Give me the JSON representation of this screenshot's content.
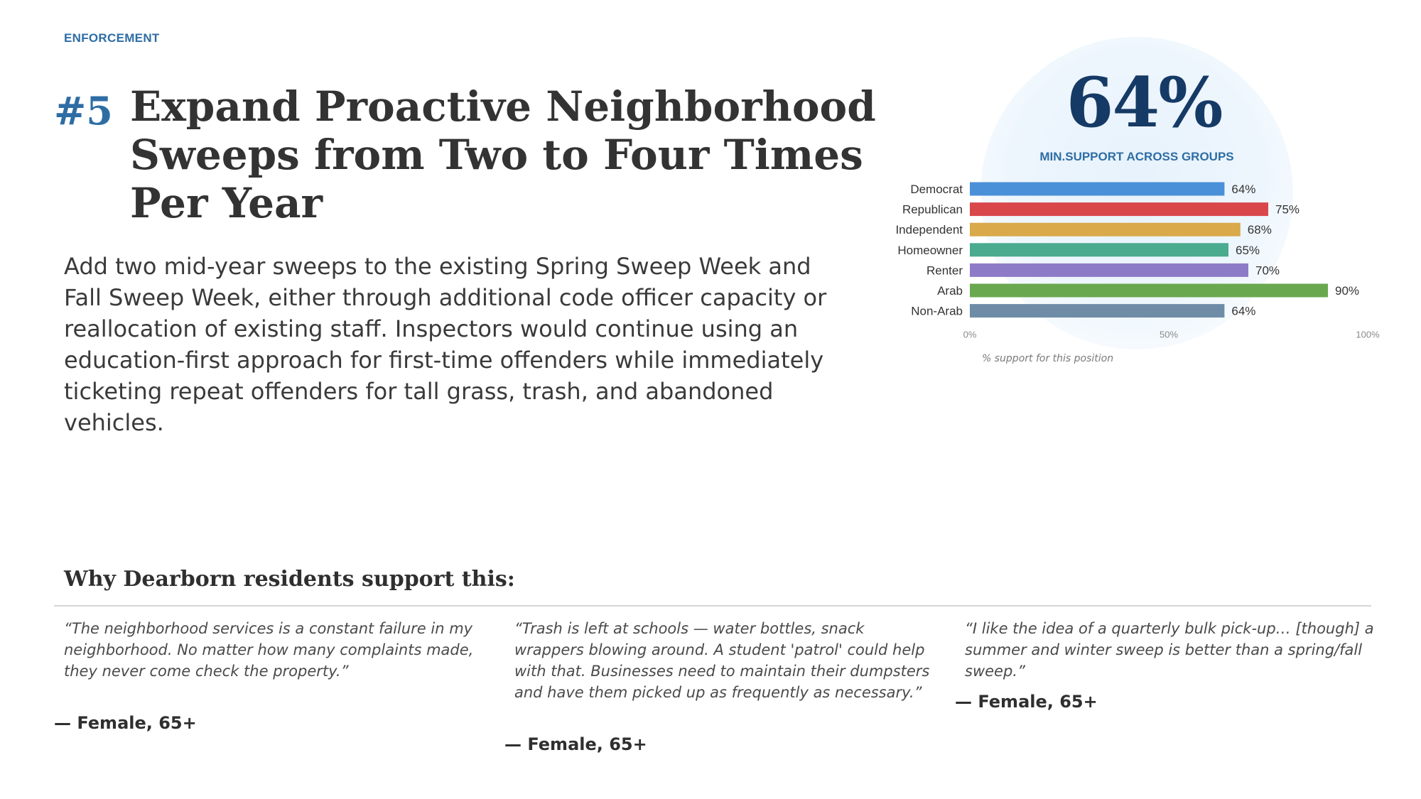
{
  "section_label": "ENFORCEMENT",
  "rank": "#5",
  "title": "Expand Proactive Neighborhood Sweeps from Two to Four Times Per Year",
  "description": "Add two mid-year sweeps to the existing Spring Sweep Week and Fall Sweep Week, either through additional code officer capacity or reallocation of existing staff. Inspectors would continue using an education-first approach for first-time offenders while immediately ticketing repeat offenders for tall grass, trash, and abandoned vehicles.",
  "headline_stat": {
    "value": "64%",
    "label": "MIN.SUPPORT ACROSS GROUPS"
  },
  "chart_note": "% support for this position",
  "chart_data": {
    "type": "bar",
    "orientation": "horizontal",
    "categories": [
      "Democrat",
      "Republican",
      "Independent",
      "Homeowner",
      "Renter",
      "Arab",
      "Non-Arab"
    ],
    "values": [
      64,
      75,
      68,
      65,
      70,
      90,
      64
    ],
    "value_labels": [
      "64%",
      "75%",
      "68%",
      "65%",
      "70%",
      "90%",
      "64%"
    ],
    "colors": [
      "#4a90d9",
      "#d9474b",
      "#d9a94a",
      "#4aab8e",
      "#8e7bc8",
      "#6aa84f",
      "#6f8ca6"
    ],
    "xlim": [
      0,
      100
    ],
    "xticks": [
      "0%",
      "50%",
      "100%"
    ],
    "grid": false,
    "legend": false
  },
  "why_heading": "Why Dearborn residents support this:",
  "quotes": [
    {
      "text": "“The neighborhood services is a constant failure in my neighborhood. No matter how many complaints made, they never come check the property.”",
      "attribution": "— Female, 65+"
    },
    {
      "text": "“Trash is left at schools — water bottles, snack wrappers blowing around. A student 'patrol' could help with that. Businesses need to maintain their dumpsters and have them picked up as frequently as necessary.”",
      "attribution": "— Female, 65+"
    },
    {
      "text": "“I like the idea of a quarterly bulk pick-up… [though] a summer and winter sweep is better than a spring/fall sweep.”",
      "attribution": "— Female, 65+"
    }
  ]
}
